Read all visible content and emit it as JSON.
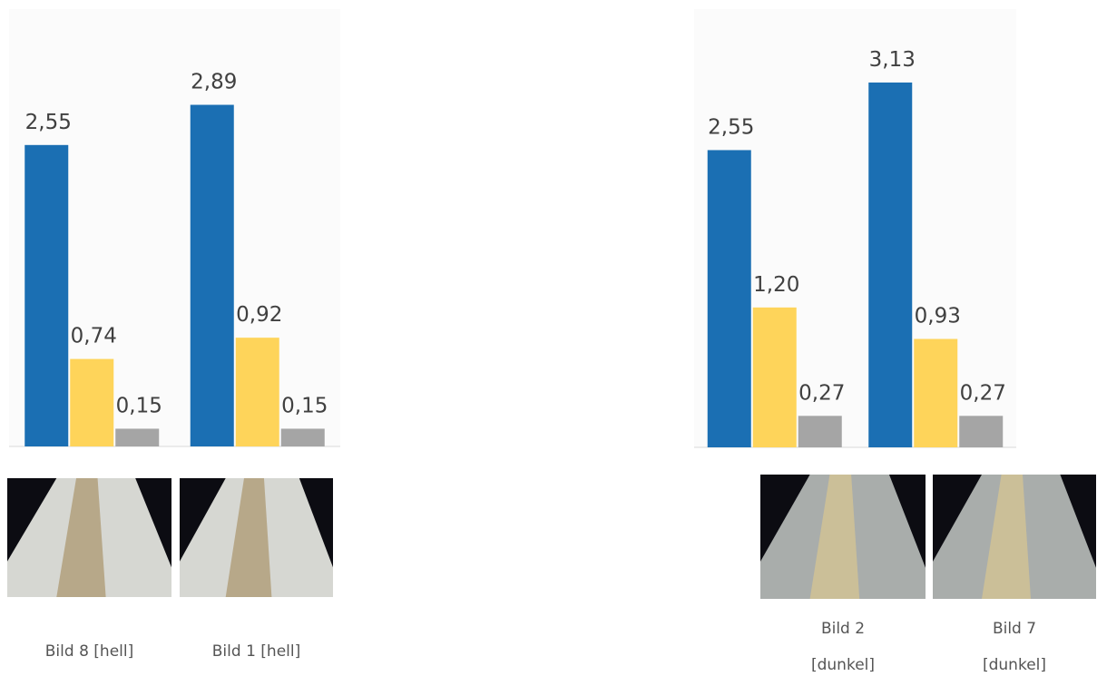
{
  "chart_data": [
    {
      "type": "bar",
      "categories": [
        "Bild 8 [hell]",
        "Bild 1 [hell]"
      ],
      "series": [
        {
          "color": "#1b6fb3",
          "values": [
            2.55,
            2.89
          ],
          "value_labels": [
            "2,55",
            "2,89"
          ]
        },
        {
          "color": "#fed45a",
          "values": [
            0.74,
            0.92
          ],
          "value_labels": [
            "0,74",
            "0,92"
          ]
        },
        {
          "color": "#a5a5a5",
          "values": [
            0.15,
            0.15
          ],
          "value_labels": [
            "0,15",
            "0,15"
          ]
        }
      ],
      "ylim": [
        0,
        3.7
      ]
    },
    {
      "type": "bar",
      "categories": [
        "Bild 2 [dunkel]",
        "Bild 7 [dunkel]"
      ],
      "series": [
        {
          "color": "#1b6fb3",
          "values": [
            2.55,
            3.13
          ],
          "value_labels": [
            "2,55",
            "3,13"
          ]
        },
        {
          "color": "#fed45a",
          "values": [
            1.2,
            0.93
          ],
          "value_labels": [
            "1,20",
            "0,93"
          ]
        },
        {
          "color": "#a5a5a5",
          "values": [
            0.27,
            0.27
          ],
          "value_labels": [
            "0,27",
            "0,27"
          ]
        }
      ],
      "ylim": [
        0,
        3.76
      ]
    }
  ]
}
